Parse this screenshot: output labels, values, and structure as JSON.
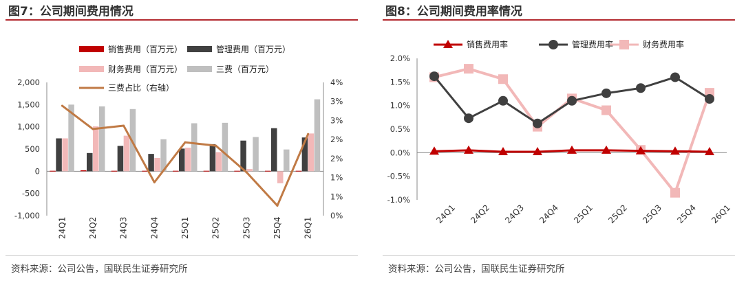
{
  "left": {
    "title": "图7：公司期间费用情况",
    "source": "资料来源：公司公告，国联民生证券研究所"
  },
  "right": {
    "title": "图8：公司期间费用率情况",
    "source": "资料来源：公司公告，国联民生证券研究所"
  },
  "colors": {
    "sales": "#c00000",
    "mgmt": "#404040",
    "finance": "#f2b8b8",
    "three": "#bfbfbf",
    "ratio_line": "#c07a45",
    "title_rule": "#b3292f"
  },
  "chart_data": [
    {
      "type": "bar",
      "categories": [
        "24Q1",
        "24Q2",
        "24Q3",
        "24Q4",
        "25Q1",
        "25Q2",
        "25Q3",
        "25Q4",
        "26Q1"
      ],
      "ylim": [
        -1000,
        2000
      ],
      "yticks": [
        "-1,000",
        "-500",
        "0",
        "500",
        "1,000",
        "1,500",
        "2,000"
      ],
      "y2lim": [
        0,
        4
      ],
      "y2ticks": [
        "0%",
        "1%",
        "1%",
        "2%",
        "2%",
        "3%",
        "3%",
        "4%"
      ],
      "grid": false,
      "legend": "top",
      "series": [
        {
          "name": "销售费用（百万元）",
          "kind": "bar",
          "values": [
            10,
            20,
            10,
            10,
            10,
            10,
            10,
            10,
            10
          ]
        },
        {
          "name": "管理费用（百万元）",
          "kind": "bar",
          "values": [
            740,
            410,
            570,
            390,
            510,
            610,
            690,
            970,
            760
          ]
        },
        {
          "name": "财务费用（百万元）",
          "kind": "bar",
          "values": [
            740,
            1010,
            800,
            300,
            530,
            430,
            50,
            -270,
            850
          ]
        },
        {
          "name": "三费（百万元）",
          "kind": "bar",
          "values": [
            1500,
            1460,
            1400,
            720,
            1080,
            1090,
            770,
            490,
            1620
          ]
        },
        {
          "name": "三费占比（右轴）",
          "kind": "line",
          "axis": "right",
          "values": [
            3.3,
            2.6,
            2.7,
            1.0,
            2.2,
            2.1,
            1.3,
            0.3,
            2.45
          ]
        }
      ]
    },
    {
      "type": "line",
      "categories": [
        "24Q1",
        "24Q2",
        "24Q3",
        "24Q4",
        "25Q1",
        "25Q2",
        "25Q3",
        "25Q4",
        "26Q1"
      ],
      "ylim": [
        -1.0,
        2.0
      ],
      "yticks": [
        "-1.0%",
        "-0.5%",
        "0.0%",
        "0.5%",
        "1.0%",
        "1.5%",
        "2.0%"
      ],
      "grid": false,
      "legend": "top",
      "series": [
        {
          "name": "销售费用率",
          "marker": "triangle",
          "values": [
            0.03,
            0.05,
            0.02,
            0.02,
            0.05,
            0.05,
            0.04,
            0.03,
            0.02
          ]
        },
        {
          "name": "管理费用率",
          "marker": "circle",
          "values": [
            1.62,
            0.73,
            1.1,
            0.62,
            1.1,
            1.26,
            1.37,
            1.6,
            1.14
          ]
        },
        {
          "name": "财务费用率",
          "marker": "square",
          "values": [
            1.6,
            1.78,
            1.56,
            0.55,
            1.15,
            0.9,
            0.06,
            -0.85,
            1.27
          ]
        }
      ]
    }
  ]
}
